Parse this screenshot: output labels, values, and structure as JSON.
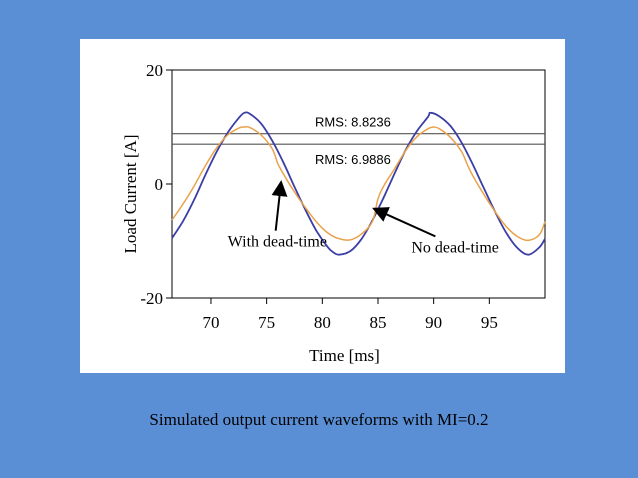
{
  "caption": "Simulated output current waveforms with MI=0.2",
  "colors": {
    "background": "#5a8fd6",
    "panel": "#ffffff",
    "no_dead_time": "#3b3fa5",
    "with_dead_time": "#e9a24c",
    "rms_lines": "#555555"
  },
  "chart_data": {
    "type": "line",
    "title": "",
    "xlabel": "Time [ms]",
    "ylabel": "Load Current [A]",
    "xlim": [
      66.5,
      100
    ],
    "ylim": [
      -20,
      20
    ],
    "xticks": [
      70,
      75,
      80,
      85,
      90,
      95
    ],
    "yticks": [
      -20,
      0,
      20
    ],
    "grid": false,
    "series": [
      {
        "name": "No dead-time",
        "color": "#3b3fa5",
        "x": [
          66.5,
          67.5,
          68.5,
          69.5,
          70.5,
          71.5,
          72.5,
          73.0,
          73.5,
          74.5,
          75.5,
          76.5,
          77.5,
          78.5,
          79.5,
          80.5,
          81.0,
          81.5,
          82.5,
          83.5,
          84.5,
          85.5,
          86.5,
          87.5,
          88.5,
          89.5,
          89.7,
          90.5,
          91.5,
          92.5,
          93.5,
          94.5,
          95.5,
          96.5,
          97.5,
          98.5,
          99.5,
          100
        ],
        "y": [
          -9.5,
          -6.5,
          -2.7,
          1.6,
          5.6,
          9.0,
          11.6,
          12.5,
          12.3,
          10.6,
          7.6,
          3.8,
          -0.5,
          -4.6,
          -8.3,
          -11.1,
          -12.0,
          -12.4,
          -11.8,
          -9.7,
          -6.4,
          -2.4,
          1.9,
          6.0,
          9.3,
          11.8,
          12.5,
          11.9,
          10.2,
          7.3,
          3.5,
          -0.7,
          -4.8,
          -8.5,
          -11.2,
          -12.4,
          -11.1,
          -9.6
        ]
      },
      {
        "name": "With dead-time",
        "color": "#e9a24c",
        "x": [
          66.5,
          67.5,
          68.5,
          69.5,
          70.5,
          71.5,
          72.5,
          73.0,
          73.5,
          74.5,
          75.5,
          76.0,
          76.5,
          77.5,
          78.5,
          79.5,
          80.5,
          81.5,
          82.5,
          83.5,
          84.5,
          85.0,
          85.5,
          86.5,
          87.5,
          88.5,
          89.5,
          90.0,
          90.5,
          91.5,
          92.5,
          93.0,
          93.5,
          94.5,
          95.5,
          96.5,
          97.5,
          98.5,
          99.5,
          100
        ],
        "y": [
          -6.3,
          -3.5,
          -0.3,
          3.2,
          6.3,
          8.6,
          9.8,
          10.0,
          9.9,
          8.6,
          6.2,
          3.6,
          1.8,
          -1.4,
          -4.2,
          -6.7,
          -8.6,
          -9.6,
          -9.8,
          -8.8,
          -6.6,
          -2.6,
          -0.4,
          2.7,
          5.9,
          8.3,
          9.7,
          10.0,
          9.7,
          8.2,
          5.7,
          3.5,
          1.5,
          -1.8,
          -4.8,
          -7.4,
          -9.2,
          -9.9,
          -8.9,
          -6.6
        ]
      }
    ],
    "reference_lines": [
      {
        "label": "RMS: 8.8236",
        "y": 8.8236
      },
      {
        "label": "RMS: 6.9886",
        "y": 6.9886
      }
    ],
    "annotations": [
      {
        "text": "With dead-time",
        "text_x": 71.5,
        "text_y": -11.0,
        "arrow_to_x": 76.3,
        "arrow_to_y": 0.4
      },
      {
        "text": "No dead-time",
        "text_x": 88.0,
        "text_y": -12.0,
        "arrow_to_x": 84.6,
        "arrow_to_y": -4.3
      }
    ]
  }
}
